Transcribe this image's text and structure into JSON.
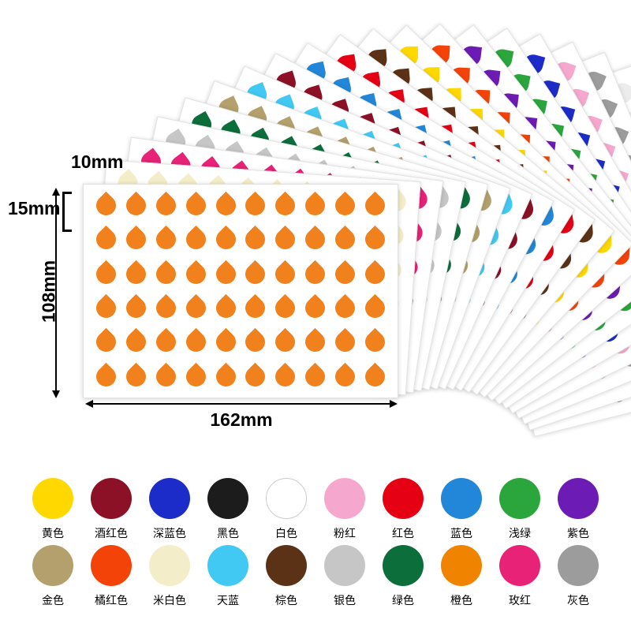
{
  "annotations": {
    "drop_width": "10mm",
    "drop_height": "15mm",
    "sheet_height": "108mm",
    "sheet_width": "162mm"
  },
  "front_sheet": {
    "color_name": "橙色",
    "color": "#f0811c",
    "rows": 6,
    "cols": 10
  },
  "fan_sheets": [
    {
      "name": "米白色",
      "color": "#f4edc9",
      "angle": 4
    },
    {
      "name": "玫红",
      "color": "#e72277",
      "angle": 8
    },
    {
      "name": "银色",
      "color": "#c6c6c6",
      "angle": 12
    },
    {
      "name": "绿色",
      "color": "#0c6e3b",
      "angle": 16
    },
    {
      "name": "金色",
      "color": "#b3a06c",
      "angle": 20
    },
    {
      "name": "天蓝",
      "color": "#41c9f3",
      "angle": 24
    },
    {
      "name": "酒红色",
      "color": "#8c1127",
      "angle": 28
    },
    {
      "name": "蓝色",
      "color": "#2287d8",
      "angle": 32
    },
    {
      "name": "红色",
      "color": "#e60014",
      "angle": 36
    },
    {
      "name": "棕色",
      "color": "#5c3217",
      "angle": 40
    },
    {
      "name": "黄色",
      "color": "#ffd800",
      "angle": 44
    },
    {
      "name": "橘红色",
      "color": "#f44309",
      "angle": 48
    },
    {
      "name": "紫色",
      "color": "#6c1cb4",
      "angle": 52
    },
    {
      "name": "浅绿",
      "color": "#2aa63d",
      "angle": 56
    },
    {
      "name": "深蓝色",
      "color": "#1c2cc8",
      "angle": 60
    },
    {
      "name": "粉红",
      "color": "#f6a7cd",
      "angle": 64
    },
    {
      "name": "灰色",
      "color": "#9c9c9c",
      "angle": 68
    },
    {
      "name": "白色",
      "color": "#ececec",
      "angle": 72
    },
    {
      "name": "黑色",
      "color": "#1c1c1c",
      "angle": 76
    }
  ],
  "swatches": {
    "rows": [
      [
        {
          "label": "黄色",
          "color": "#ffd800"
        },
        {
          "label": "酒红色",
          "color": "#8c1127"
        },
        {
          "label": "深蓝色",
          "color": "#1c2cc8"
        },
        {
          "label": "黑色",
          "color": "#1c1c1c"
        },
        {
          "label": "白色",
          "color": "#ffffff"
        },
        {
          "label": "粉红",
          "color": "#f6a7cd"
        },
        {
          "label": "红色",
          "color": "#e60014"
        },
        {
          "label": "蓝色",
          "color": "#2287d8"
        },
        {
          "label": "浅绿",
          "color": "#2aa63d"
        },
        {
          "label": "紫色",
          "color": "#6c1cb4"
        }
      ],
      [
        {
          "label": "金色",
          "color": "#b3a06c"
        },
        {
          "label": "橘红色",
          "color": "#f44309"
        },
        {
          "label": "米白色",
          "color": "#f4edc9"
        },
        {
          "label": "天蓝",
          "color": "#41c9f3"
        },
        {
          "label": "棕色",
          "color": "#5c3217"
        },
        {
          "label": "银色",
          "color": "#c6c6c6"
        },
        {
          "label": "绿色",
          "color": "#0c6e3b"
        },
        {
          "label": "橙色",
          "color": "#f08300"
        },
        {
          "label": "玫红",
          "color": "#e72277"
        },
        {
          "label": "灰色",
          "color": "#9c9c9c"
        }
      ]
    ]
  }
}
